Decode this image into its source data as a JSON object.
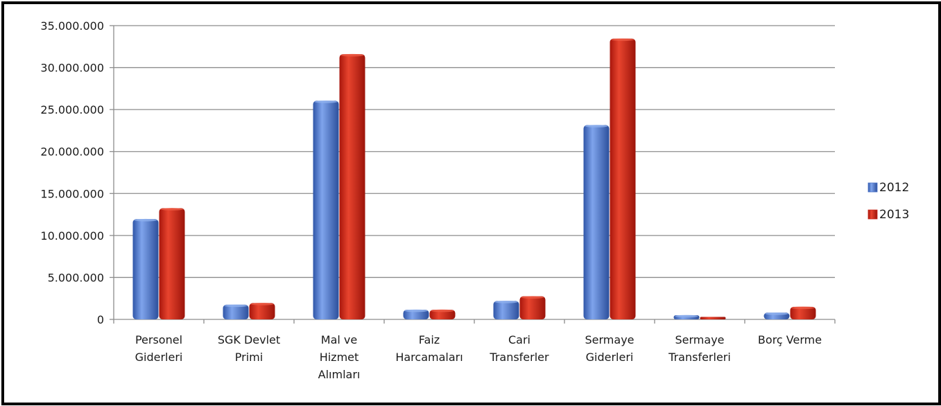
{
  "chart_data": {
    "type": "bar",
    "categories": [
      [
        "Personel",
        "Giderleri"
      ],
      [
        "SGK Devlet",
        "Primi"
      ],
      [
        "Mal ve",
        "Hizmet",
        "Alımları"
      ],
      [
        "Faiz",
        "Harcamaları"
      ],
      [
        "Cari",
        "Transferler"
      ],
      [
        "Sermaye",
        "Giderleri"
      ],
      [
        "Sermaye",
        "Transferleri"
      ],
      [
        "Borç Verme"
      ]
    ],
    "series": [
      {
        "name": "2012",
        "color": "#4a72c8",
        "values": [
          11950000,
          1750000,
          26050000,
          1150000,
          2200000,
          23150000,
          500000,
          800000
        ]
      },
      {
        "name": "2013",
        "color": "#c8261a",
        "values": [
          13250000,
          1950000,
          31600000,
          1150000,
          2750000,
          33450000,
          300000,
          1500000
        ]
      }
    ],
    "yticks": [
      "0",
      "5.000.000",
      "10.000.000",
      "15.000.000",
      "20.000.000",
      "25.000.000",
      "30.000.000",
      "35.000.000"
    ],
    "ylim": [
      0,
      35000000
    ],
    "grid": true,
    "legend_position": "right"
  }
}
